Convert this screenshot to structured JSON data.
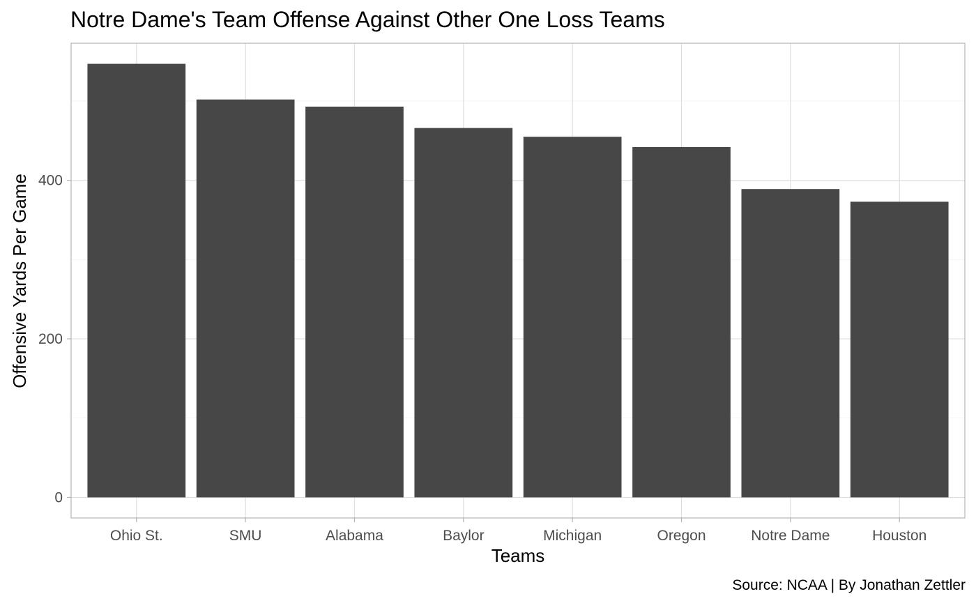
{
  "chart_data": {
    "type": "bar",
    "title": "Notre Dame's Team Offense Against Other One Loss Teams",
    "xlabel": "Teams",
    "ylabel": "Offensive Yards Per Game",
    "caption": "Source: NCAA | By Jonathan Zettler",
    "categories": [
      "Ohio St.",
      "SMU",
      "Alabama",
      "Baylor",
      "Michigan",
      "Oregon",
      "Notre Dame",
      "Houston"
    ],
    "values": [
      547,
      502,
      493,
      466,
      455,
      442,
      389,
      373
    ],
    "ylim": [
      -26,
      573
    ],
    "yticks": [
      0,
      200,
      400
    ],
    "ytick_labels": [
      "0",
      "200",
      "400"
    ],
    "yminor": [
      100,
      300,
      500
    ],
    "bar_color": "#474747",
    "grid": true
  }
}
